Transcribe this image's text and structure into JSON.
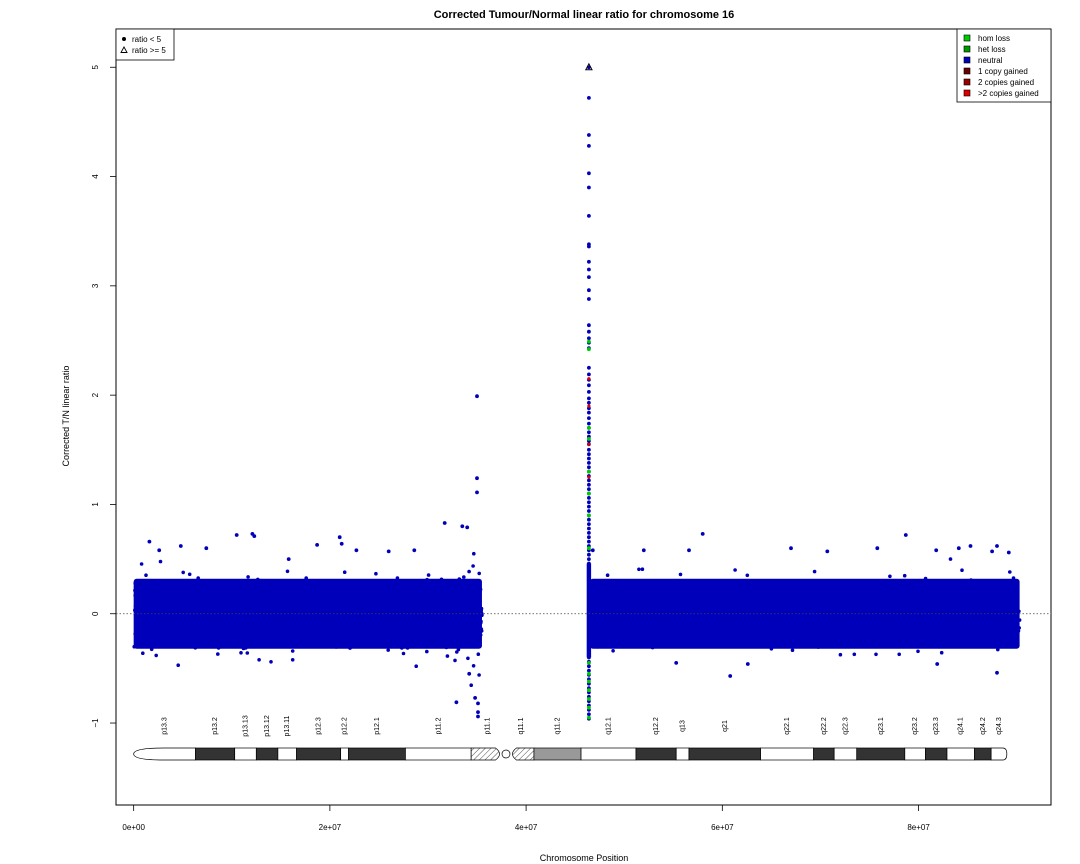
{
  "chart_data": {
    "type": "scatter",
    "title": "Corrected Tumour/Normal linear ratio for chromosome  16",
    "xlabel": "Chromosome Position",
    "ylabel": "Corrected T/N linear ratio",
    "xlim": [
      -1800000,
      93500000
    ],
    "ylim": [
      -1.75,
      5.35
    ],
    "x_ticks": [
      0,
      20000000,
      40000000,
      60000000,
      80000000
    ],
    "x_tick_labels": [
      "0e+00",
      "2e+07",
      "4e+07",
      "6e+07",
      "8e+07"
    ],
    "y_ticks": [
      -1,
      0,
      1,
      2,
      3,
      4,
      5
    ],
    "y_tick_labels": [
      "−1",
      "0",
      "1",
      "2",
      "3",
      "4",
      "5"
    ],
    "reference_line": 0,
    "colors": {
      "hom_loss": "#00cc00",
      "het_loss": "#009900",
      "neutral": "#0000bb",
      "one_copy_gained": "#6b0000",
      "two_copies_gained": "#990000",
      "gt_two_copies_gained": "#dd0000"
    },
    "series": [
      {
        "key": "arm_p",
        "x_range": [
          0,
          35500000
        ],
        "band": [
          -0.32,
          0.32
        ],
        "spread": 0.14,
        "outliers": [
          [
            1600000,
            0.66
          ],
          [
            2600000,
            0.58
          ],
          [
            4800000,
            0.62
          ],
          [
            7400000,
            0.6
          ],
          [
            10500000,
            0.72
          ],
          [
            12100000,
            0.73
          ],
          [
            12300000,
            0.71
          ],
          [
            15800000,
            0.5
          ],
          [
            18700000,
            0.63
          ],
          [
            21000000,
            0.7
          ],
          [
            21200000,
            0.64
          ],
          [
            22700000,
            0.58
          ],
          [
            26000000,
            0.57
          ],
          [
            28600000,
            0.58
          ],
          [
            31700000,
            0.83
          ],
          [
            33500000,
            0.8
          ],
          [
            34000000,
            0.79
          ],
          [
            35000000,
            1.11
          ],
          [
            35000000,
            1.24
          ],
          [
            35000000,
            1.99
          ],
          [
            35100000,
            -0.82
          ],
          [
            34800000,
            -0.77
          ],
          [
            35100000,
            -0.9
          ],
          [
            35100000,
            -0.94
          ],
          [
            32900000,
            -0.81
          ],
          [
            34200000,
            -0.55
          ]
        ]
      },
      {
        "key": "centromere_column",
        "x": 46400000,
        "points": [
          5.0,
          4.72,
          4.38,
          4.28,
          4.03,
          3.9,
          3.64,
          3.38,
          3.36,
          3.22,
          3.15,
          3.08,
          2.96,
          2.88,
          2.64,
          2.58,
          2.52,
          2.48,
          2.43,
          2.25,
          2.19,
          2.14,
          2.09,
          2.03,
          1.97,
          1.93,
          1.88,
          1.84,
          1.79,
          1.74,
          1.7,
          1.66,
          1.62,
          1.58,
          1.55,
          1.5,
          1.46,
          1.42,
          1.38,
          1.34,
          1.3,
          1.26,
          1.22,
          1.18,
          1.14,
          1.1,
          1.06,
          1.02,
          0.98,
          0.94,
          0.9,
          0.86,
          0.82,
          0.78,
          0.74,
          0.7,
          0.66,
          0.62,
          0.58,
          0.54,
          0.5,
          0.46,
          -0.4,
          -0.44,
          -0.48,
          -0.52,
          -0.56,
          -0.6,
          -0.64,
          -0.68,
          -0.72,
          -0.76,
          -0.8,
          -0.84,
          -0.88,
          -0.92,
          -0.96
        ],
        "hom_loss_points": [
          2.49,
          2.42,
          1.7,
          1.6,
          1.3,
          1.1,
          0.9,
          0.6,
          -0.45,
          -0.55,
          -0.62,
          -0.7,
          -0.78,
          -0.86,
          -0.95
        ],
        "gain_points": [
          2.15,
          1.9,
          1.55,
          1.25
        ]
      },
      {
        "key": "arm_q",
        "x_range": [
          46500000,
          90300000
        ],
        "band": [
          -0.32,
          0.32
        ],
        "spread": 0.14,
        "outliers": [
          [
            46800000,
            0.58
          ],
          [
            52000000,
            0.58
          ],
          [
            56600000,
            0.58
          ],
          [
            58000000,
            0.73
          ],
          [
            67000000,
            0.6
          ],
          [
            70700000,
            0.57
          ],
          [
            75800000,
            0.6
          ],
          [
            78700000,
            0.72
          ],
          [
            81800000,
            0.58
          ],
          [
            84100000,
            0.6
          ],
          [
            85300000,
            0.62
          ],
          [
            87500000,
            0.57
          ],
          [
            88000000,
            0.62
          ],
          [
            89200000,
            0.56
          ],
          [
            88000000,
            -0.54
          ],
          [
            60800000,
            -0.57
          ],
          [
            62600000,
            -0.46
          ],
          [
            55300000,
            -0.45
          ],
          [
            81900000,
            -0.46
          ]
        ]
      }
    ],
    "overflow_points": [
      [
        46400000,
        5.0
      ]
    ],
    "point_legend": {
      "position": "top-left",
      "items": [
        {
          "symbol": "dot",
          "label": "ratio < 5"
        },
        {
          "symbol": "triangle",
          "label": "ratio >= 5"
        }
      ]
    },
    "color_legend": {
      "position": "top-right",
      "items": [
        {
          "color": "#00cc00",
          "label": "hom loss"
        },
        {
          "color": "#009900",
          "label": "het loss"
        },
        {
          "color": "#0000bb",
          "label": "neutral"
        },
        {
          "color": "#6b0000",
          "label": "1 copy gained"
        },
        {
          "color": "#990000",
          "label": "2 copies gained"
        },
        {
          "color": "#dd0000",
          "label": ">2 copies gained"
        }
      ]
    },
    "ideogram": {
      "bands": [
        {
          "name": "p13.3",
          "start": 0,
          "end": 6300000,
          "stain": "white"
        },
        {
          "name": "p13.2",
          "start": 6300000,
          "end": 10300000,
          "stain": "black"
        },
        {
          "name": "p13.13",
          "start": 10300000,
          "end": 12500000,
          "stain": "white"
        },
        {
          "name": "p13.12",
          "start": 12500000,
          "end": 14700000,
          "stain": "black"
        },
        {
          "name": "p13.11",
          "start": 14700000,
          "end": 16600000,
          "stain": "white"
        },
        {
          "name": "p12.3",
          "start": 16600000,
          "end": 21100000,
          "stain": "black"
        },
        {
          "name": "p12.2",
          "start": 21100000,
          "end": 21900000,
          "stain": "white"
        },
        {
          "name": "p12.1",
          "start": 21900000,
          "end": 27700000,
          "stain": "black"
        },
        {
          "name": "p11.2",
          "start": 27700000,
          "end": 34400000,
          "stain": "white"
        },
        {
          "name": "p11.1",
          "start": 34400000,
          "end": 37700000,
          "stain": "hatch"
        },
        {
          "name": "q11.1",
          "start": 38200000,
          "end": 40800000,
          "stain": "hatch"
        },
        {
          "name": "q11.2",
          "start": 40800000,
          "end": 45600000,
          "stain": "gray"
        },
        {
          "name": "q12.1",
          "start": 45600000,
          "end": 51200000,
          "stain": "white"
        },
        {
          "name": "q12.2",
          "start": 51200000,
          "end": 55300000,
          "stain": "black"
        },
        {
          "name": "q13",
          "start": 55300000,
          "end": 56600000,
          "stain": "white"
        },
        {
          "name": "q21",
          "start": 56600000,
          "end": 63900000,
          "stain": "black"
        },
        {
          "name": "q22.1",
          "start": 63900000,
          "end": 69300000,
          "stain": "white"
        },
        {
          "name": "q22.2",
          "start": 69300000,
          "end": 71400000,
          "stain": "black"
        },
        {
          "name": "q22.3",
          "start": 71400000,
          "end": 73700000,
          "stain": "white"
        },
        {
          "name": "q23.1",
          "start": 73700000,
          "end": 78600000,
          "stain": "black"
        },
        {
          "name": "q23.2",
          "start": 78600000,
          "end": 80700000,
          "stain": "white"
        },
        {
          "name": "q23.3",
          "start": 80700000,
          "end": 82900000,
          "stain": "black"
        },
        {
          "name": "q24.1",
          "start": 82900000,
          "end": 85700000,
          "stain": "white"
        },
        {
          "name": "q24.2",
          "start": 85700000,
          "end": 87400000,
          "stain": "black"
        },
        {
          "name": "q24.3",
          "start": 87400000,
          "end": 89000000,
          "stain": "white"
        }
      ]
    }
  }
}
